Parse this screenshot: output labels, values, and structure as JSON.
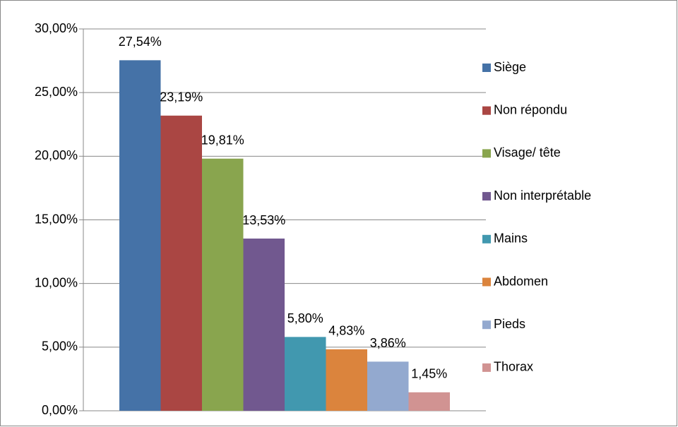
{
  "chart_data": {
    "type": "bar",
    "categories": [
      null
    ],
    "series": [
      {
        "name": "Siège",
        "color": "#4572a7",
        "values": [
          27.54
        ],
        "value_labels": [
          "27,54%"
        ]
      },
      {
        "name": "Non répondu",
        "color": "#aa4643",
        "values": [
          23.19
        ],
        "value_labels": [
          "23,19%"
        ]
      },
      {
        "name": "Visage/ tête",
        "color": "#89a54e",
        "values": [
          19.81
        ],
        "value_labels": [
          "19,81%"
        ]
      },
      {
        "name": "Non interprétable",
        "color": "#71588f",
        "values": [
          13.53
        ],
        "value_labels": [
          "13,53%"
        ]
      },
      {
        "name": "Mains",
        "color": "#4198af",
        "values": [
          5.8
        ],
        "value_labels": [
          "5,80%"
        ]
      },
      {
        "name": "Abdomen",
        "color": "#db843d",
        "values": [
          4.83
        ],
        "value_labels": [
          "4,83%"
        ]
      },
      {
        "name": "Pieds",
        "color": "#93a9cf",
        "values": [
          3.86
        ],
        "value_labels": [
          "3,86%"
        ]
      },
      {
        "name": "Thorax",
        "color": "#d19392",
        "values": [
          1.45
        ],
        "value_labels": [
          "1,45%"
        ]
      }
    ],
    "ylim": [
      0,
      30
    ],
    "yticks": [
      {
        "value": 0,
        "label": "0,00%"
      },
      {
        "value": 5,
        "label": "5,00%"
      },
      {
        "value": 10,
        "label": "10,00%"
      },
      {
        "value": 15,
        "label": "15,00%"
      },
      {
        "value": 20,
        "label": "20,00%"
      },
      {
        "value": 25,
        "label": "25,00%"
      },
      {
        "value": 30,
        "label": "30,00%"
      }
    ],
    "grid": true,
    "legend": "right"
  }
}
